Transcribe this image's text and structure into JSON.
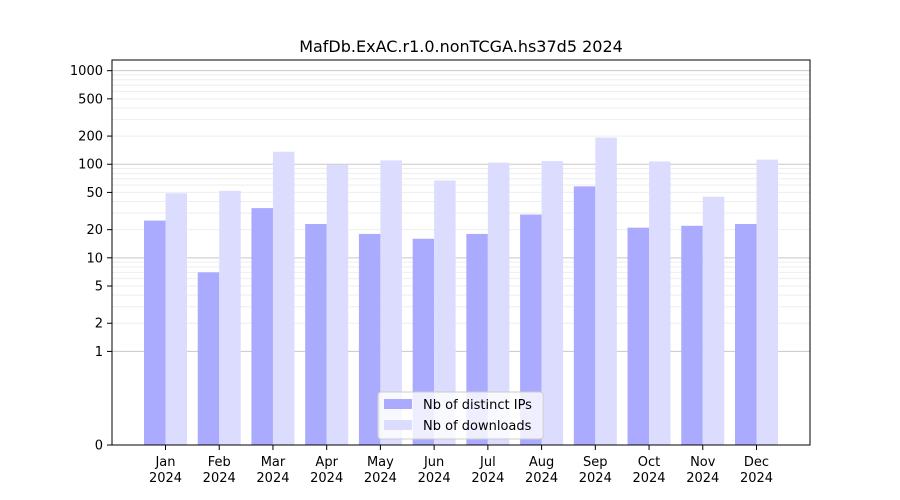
{
  "chart_data": {
    "type": "bar",
    "title": "MafDb.ExAC.r1.0.nonTCGA.hs37d5 2024",
    "xlabel": "",
    "ylabel": "",
    "y_scale": "symlog",
    "ylim": [
      0,
      1300
    ],
    "y_ticks": [
      0,
      1,
      2,
      5,
      10,
      20,
      50,
      100,
      200,
      500,
      1000
    ],
    "y_tick_labels": [
      "0",
      "1",
      "2",
      "5",
      "10",
      "20",
      "50",
      "100",
      "200",
      "500",
      "1000"
    ],
    "categories": [
      "Jan\n2024",
      "Feb\n2024",
      "Mar\n2024",
      "Apr\n2024",
      "May\n2024",
      "Jun\n2024",
      "Jul\n2024",
      "Aug\n2024",
      "Sep\n2024",
      "Oct\n2024",
      "Nov\n2024",
      "Dec\n2024"
    ],
    "grid": true,
    "legend_position": "bottom-center",
    "series": [
      {
        "name": "Nb of distinct IPs",
        "color": "#aaaaff",
        "values": [
          25,
          7,
          34,
          23,
          18,
          16,
          18,
          29,
          58,
          21,
          22,
          23
        ]
      },
      {
        "name": "Nb of downloads",
        "color": "#dcdcff",
        "values": [
          49,
          52,
          136,
          99,
          110,
          67,
          104,
          108,
          193,
          107,
          45,
          112
        ]
      }
    ]
  }
}
